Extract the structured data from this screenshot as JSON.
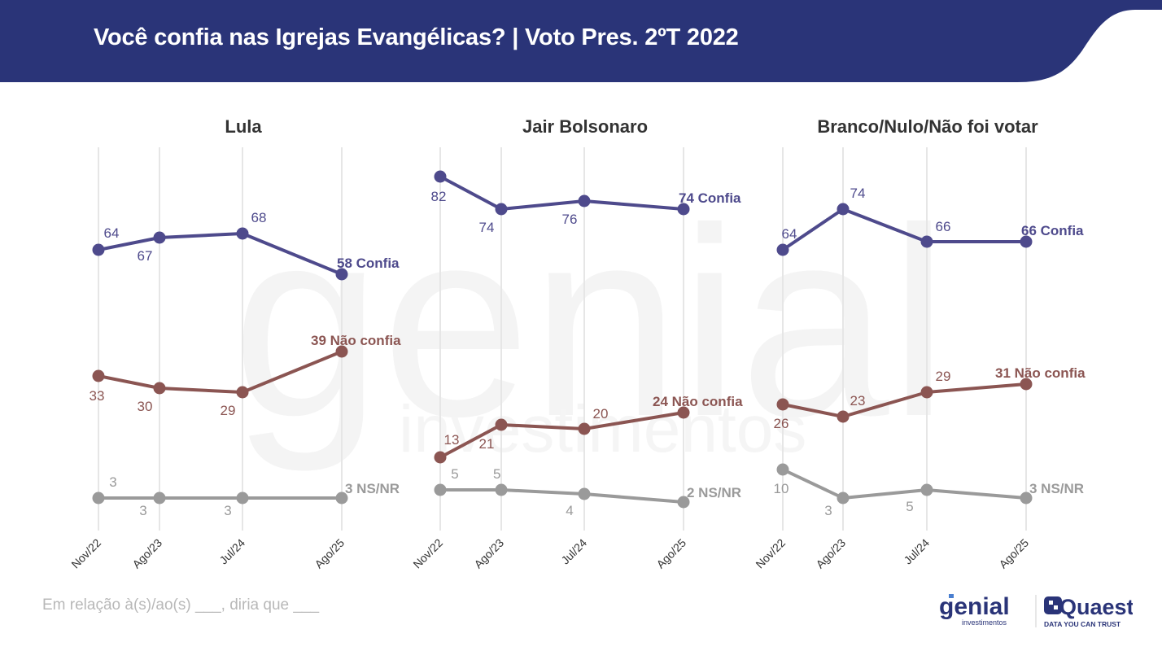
{
  "header": {
    "title": "Você confia nas Igrejas Evangélicas? | Voto Pres. 2ºT 2022",
    "background_color": "#2a3478"
  },
  "footnote": "Em relação à(s)/ao(s) ___, diria que ___",
  "logos": {
    "genial_name": "genial",
    "genial_sub": "investimentos",
    "quaest_name": "Quaest",
    "quaest_sub": "DATA YOU CAN TRUST"
  },
  "watermark": {
    "main": "genial",
    "sub": "investimentos"
  },
  "colors": {
    "confia": "#4e4a8c",
    "nao_confia": "#8b5552",
    "ns_nr": "#9a9a9a",
    "grid": "#e6e6e6"
  },
  "chart_data": [
    {
      "type": "line",
      "title": "Lula",
      "categories": [
        "Nov/22",
        "Ago/23",
        "Jul/24",
        "Ago/25"
      ],
      "xlabel": "",
      "ylabel": "",
      "series": [
        {
          "name": "Confia",
          "key": "confia",
          "values": [
            64,
            67,
            68,
            58
          ],
          "end_label": "58 Confia"
        },
        {
          "name": "Não confia",
          "key": "nao_confia",
          "values": [
            33,
            30,
            29,
            39
          ],
          "end_label": "39 Não confia"
        },
        {
          "name": "NS/NR",
          "key": "ns_nr",
          "values": [
            3,
            3,
            3,
            3
          ],
          "end_label": "3 NS/NR"
        }
      ]
    },
    {
      "type": "line",
      "title": "Jair Bolsonaro",
      "categories": [
        "Nov/22",
        "Ago/23",
        "Jul/24",
        "Ago/25"
      ],
      "xlabel": "",
      "ylabel": "",
      "series": [
        {
          "name": "Confia",
          "key": "confia",
          "values": [
            82,
            74,
            76,
            74
          ],
          "end_label": "74 Confia"
        },
        {
          "name": "Não confia",
          "key": "nao_confia",
          "values": [
            13,
            21,
            20,
            24
          ],
          "end_label": "24 Não confia"
        },
        {
          "name": "NS/NR",
          "key": "ns_nr",
          "values": [
            5,
            5,
            4,
            2
          ],
          "end_label": "2 NS/NR"
        }
      ]
    },
    {
      "type": "line",
      "title": "Branco/Nulo/Não foi votar",
      "categories": [
        "Nov/22",
        "Ago/23",
        "Jul/24",
        "Ago/25"
      ],
      "xlabel": "",
      "ylabel": "",
      "series": [
        {
          "name": "Confia",
          "key": "confia",
          "values": [
            64,
            74,
            66,
            66
          ],
          "end_label": "66 Confia"
        },
        {
          "name": "Não confia",
          "key": "nao_confia",
          "values": [
            26,
            23,
            29,
            31
          ],
          "end_label": "31 Não confia"
        },
        {
          "name": "NS/NR",
          "key": "ns_nr",
          "values": [
            10,
            3,
            5,
            3
          ],
          "end_label": "3 NS/NR"
        }
      ]
    }
  ]
}
